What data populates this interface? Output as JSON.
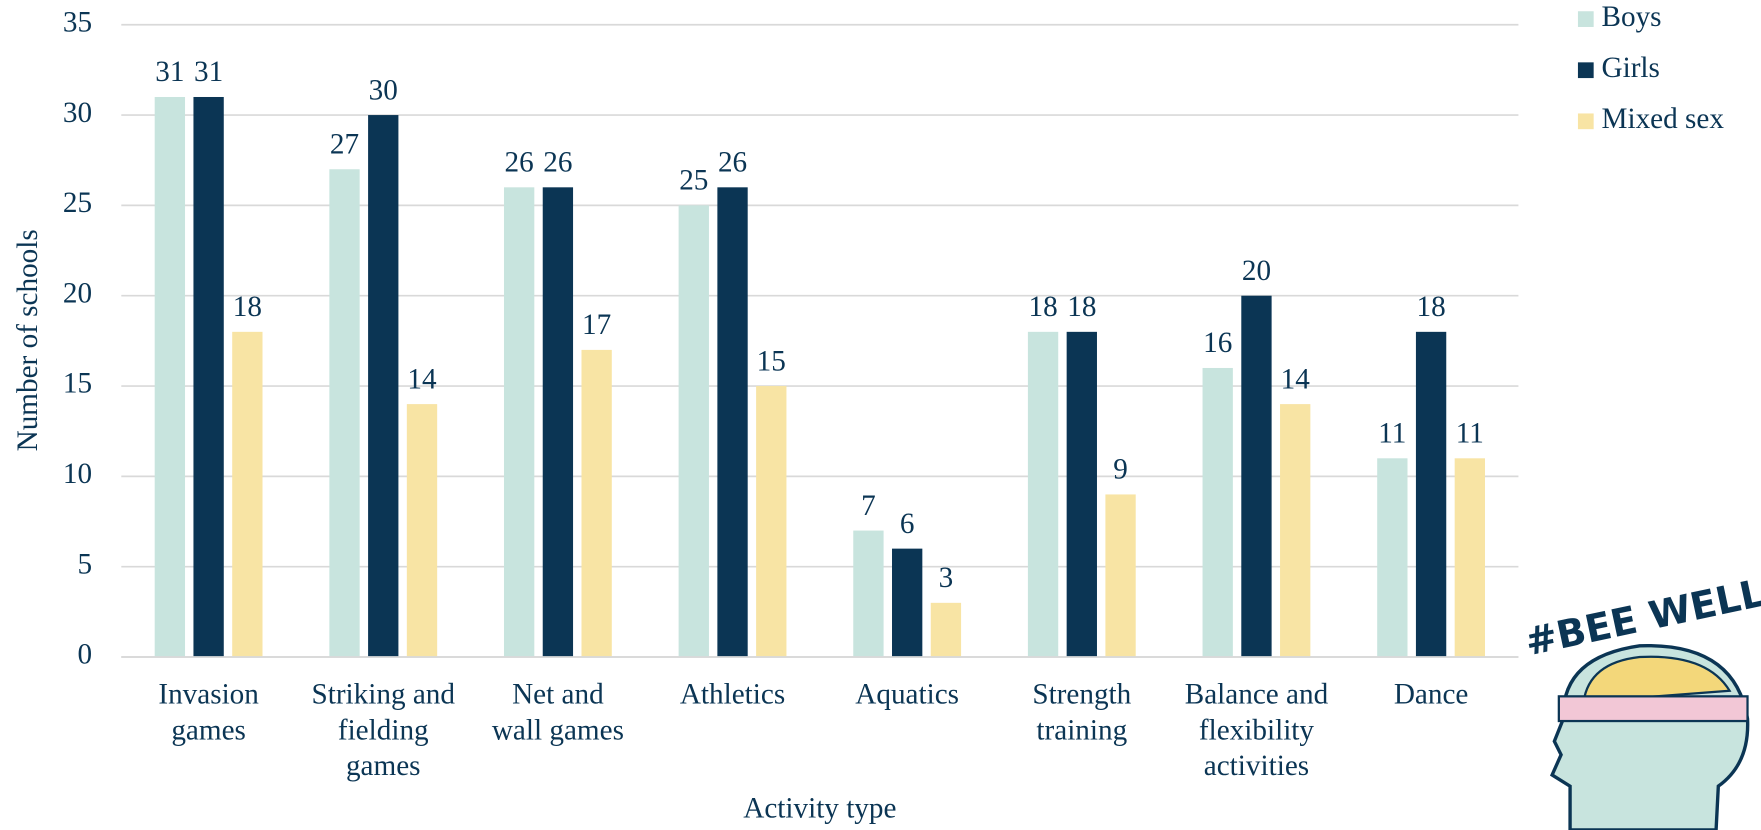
{
  "chart_data": {
    "type": "bar",
    "x_label": "Activity type",
    "y_label": "Number of schools",
    "categories": [
      "Invasion\ngames",
      "Striking and\nfielding\ngames",
      "Net and\nwall games",
      "Athletics",
      "Aquatics",
      "Strength\ntraining",
      "Balance and\nflexibility\nactivities",
      "Dance"
    ],
    "series": [
      {
        "name": "Boys",
        "color": "#c8e4de",
        "values": [
          31,
          27,
          26,
          25,
          7,
          18,
          16,
          11
        ]
      },
      {
        "name": "Girls",
        "color": "#0b3554",
        "values": [
          31,
          30,
          26,
          26,
          6,
          18,
          20,
          18
        ]
      },
      {
        "name": "Mixed sex",
        "color": "#f8e4a4",
        "values": [
          18,
          14,
          17,
          15,
          3,
          9,
          14,
          11
        ]
      }
    ],
    "ylim": [
      0,
      35
    ],
    "yticks": [
      0,
      5,
      10,
      15,
      20,
      25,
      30,
      35
    ],
    "grid": true,
    "legend": "top-right"
  },
  "logo": "#BEE WELL"
}
